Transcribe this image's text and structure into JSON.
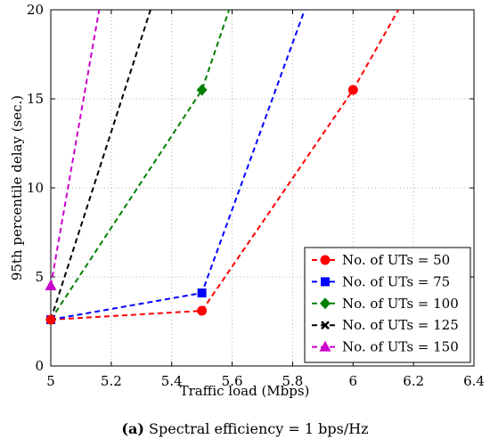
{
  "caption": {
    "label": "(a)",
    "text": "Spectral efficiency = 1 bps/Hz"
  },
  "chart_data": {
    "type": "line",
    "xlabel": "Traffic load (Mbps)",
    "ylabel": "95th percentile delay (sec.)",
    "xlim": [
      5,
      6.4
    ],
    "ylim": [
      0,
      20
    ],
    "xticks": [
      5,
      5.2,
      5.4,
      5.6,
      5.8,
      6,
      6.2,
      6.4
    ],
    "yticks": [
      0,
      5,
      10,
      15,
      20
    ],
    "xtick_labels": [
      "5",
      "5.2",
      "5.4",
      "5.6",
      "5.8",
      "6",
      "6.2",
      "6.4"
    ],
    "ytick_labels": [
      "0",
      "5",
      "10",
      "15",
      "20"
    ],
    "grid": true,
    "legend_position": "bottom-right",
    "series": [
      {
        "name": "No. of UTs = 50",
        "color": "#ff0000",
        "marker": "circle",
        "x": [
          5,
          5.5,
          6,
          6.15
        ],
        "y": [
          2.6,
          3.1,
          15.5,
          20
        ],
        "marker_idx": [
          0,
          1,
          2
        ]
      },
      {
        "name": "No. of UTs = 75",
        "color": "#0000ff",
        "marker": "square",
        "x": [
          5,
          5.5,
          5.84
        ],
        "y": [
          2.6,
          4.1,
          20
        ],
        "marker_idx": [
          0,
          1
        ]
      },
      {
        "name": "No. of UTs = 100",
        "color": "#008000",
        "marker": "diamond",
        "x": [
          5,
          5.5,
          5.59
        ],
        "y": [
          2.6,
          15.5,
          20
        ],
        "marker_idx": [
          0,
          1
        ]
      },
      {
        "name": "No. of UTs = 125",
        "color": "#000000",
        "marker": "x",
        "x": [
          5,
          5.33
        ],
        "y": [
          2.6,
          20
        ],
        "marker_idx": [
          0
        ]
      },
      {
        "name": "No. of UTs = 150",
        "color": "#cc00cc",
        "marker": "triangle",
        "x": [
          5,
          5.16
        ],
        "y": [
          4.5,
          20
        ],
        "marker_idx": [
          0
        ]
      }
    ]
  }
}
